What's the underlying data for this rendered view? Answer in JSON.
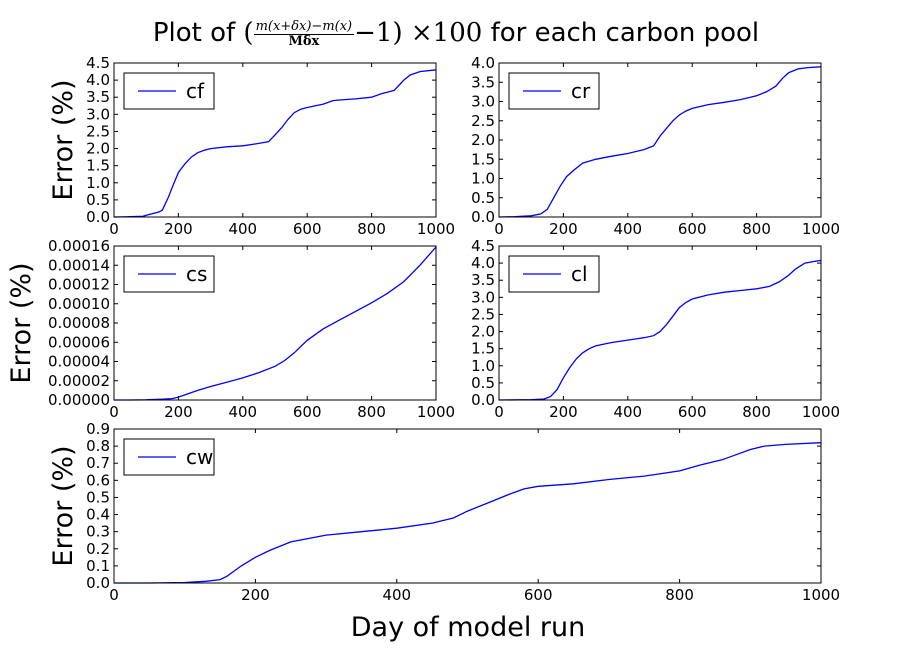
{
  "figure": {
    "title_prefix": "Plot of",
    "title_suffix": "for each carbon pool",
    "formula": {
      "open": "(",
      "numerator": "m(x+δx)−m(x)",
      "denominator": "Mδx",
      "tail": "−1) ×100"
    },
    "xlabel": "Day of model run",
    "line_color": "#0000ff"
  },
  "chart_data": [
    {
      "type": "line",
      "ylabel": "Error (%)",
      "xlim": [
        0,
        1000
      ],
      "ylim": [
        0,
        4.5
      ],
      "xticks": [
        "0",
        "200",
        "400",
        "600",
        "800",
        "1000"
      ],
      "yticks": [
        "0.0",
        "0.5",
        "1.0",
        "1.5",
        "2.0",
        "2.5",
        "3.0",
        "3.5",
        "4.0",
        "4.5"
      ],
      "legend": "top-left",
      "series": [
        {
          "name": "cf",
          "x": [
            0,
            50,
            90,
            100,
            120,
            140,
            150,
            160,
            170,
            180,
            200,
            220,
            240,
            260,
            280,
            300,
            350,
            400,
            450,
            480,
            500,
            520,
            540,
            560,
            580,
            600,
            650,
            680,
            700,
            750,
            800,
            830,
            850,
            870,
            880,
            900,
            920,
            950,
            1000
          ],
          "y": [
            0,
            0.01,
            0.02,
            0.05,
            0.1,
            0.15,
            0.2,
            0.4,
            0.6,
            0.85,
            1.3,
            1.55,
            1.75,
            1.88,
            1.95,
            2.0,
            2.05,
            2.08,
            2.15,
            2.2,
            2.4,
            2.6,
            2.85,
            3.05,
            3.15,
            3.2,
            3.3,
            3.4,
            3.42,
            3.45,
            3.5,
            3.6,
            3.65,
            3.7,
            3.8,
            4.0,
            4.15,
            4.25,
            4.3
          ]
        }
      ]
    },
    {
      "type": "line",
      "ylabel": "",
      "xlim": [
        0,
        1000
      ],
      "ylim": [
        0,
        4.0
      ],
      "xticks": [
        "0",
        "200",
        "400",
        "600",
        "800",
        "1000"
      ],
      "yticks": [
        "0.0",
        "0.5",
        "1.0",
        "1.5",
        "2.0",
        "2.5",
        "3.0",
        "3.5",
        "4.0"
      ],
      "legend": "top-left",
      "series": [
        {
          "name": "cr",
          "x": [
            0,
            50,
            100,
            130,
            150,
            170,
            190,
            210,
            230,
            260,
            300,
            350,
            400,
            450,
            480,
            500,
            520,
            540,
            560,
            580,
            600,
            650,
            700,
            750,
            800,
            830,
            860,
            880,
            900,
            930,
            960,
            1000
          ],
          "y": [
            0,
            0.01,
            0.03,
            0.08,
            0.2,
            0.5,
            0.8,
            1.05,
            1.2,
            1.4,
            1.5,
            1.58,
            1.65,
            1.75,
            1.85,
            2.1,
            2.3,
            2.5,
            2.65,
            2.75,
            2.82,
            2.92,
            2.98,
            3.05,
            3.15,
            3.25,
            3.4,
            3.6,
            3.75,
            3.85,
            3.88,
            3.9
          ]
        }
      ]
    },
    {
      "type": "line",
      "ylabel": "Error (%)",
      "xlim": [
        0,
        1000
      ],
      "ylim": [
        0,
        0.00016
      ],
      "xticks": [
        "0",
        "200",
        "400",
        "600",
        "800",
        "1000"
      ],
      "yticks": [
        "0.00000",
        "0.00002",
        "0.00004",
        "0.00006",
        "0.00008",
        "0.00010",
        "0.00012",
        "0.00014",
        "0.00016"
      ],
      "legend": "top-left",
      "series": [
        {
          "name": "cs",
          "x": [
            0,
            50,
            100,
            150,
            180,
            200,
            230,
            260,
            300,
            350,
            400,
            450,
            500,
            530,
            560,
            600,
            650,
            700,
            750,
            800,
            850,
            900,
            950,
            1000
          ],
          "y": [
            0,
            0,
            2e-07,
            8e-07,
            1.5e-06,
            3e-06,
            6.5e-06,
            1e-05,
            1.4e-05,
            1.85e-05,
            2.3e-05,
            2.85e-05,
            3.5e-05,
            4.1e-05,
            4.9e-05,
            6.2e-05,
            7.4e-05,
            8.3e-05,
            9.2e-05,
            0.000101,
            0.000111,
            0.000123,
            0.00014,
            0.000159
          ]
        }
      ]
    },
    {
      "type": "line",
      "ylabel": "",
      "xlim": [
        0,
        1000
      ],
      "ylim": [
        0,
        4.5
      ],
      "xticks": [
        "0",
        "200",
        "400",
        "600",
        "800",
        "1000"
      ],
      "yticks": [
        "0.0",
        "0.5",
        "1.0",
        "1.5",
        "2.0",
        "2.5",
        "3.0",
        "3.5",
        "4.0",
        "4.5"
      ],
      "legend": "top-left",
      "series": [
        {
          "name": "cl",
          "x": [
            0,
            100,
            140,
            160,
            180,
            200,
            220,
            240,
            260,
            280,
            300,
            350,
            400,
            450,
            480,
            500,
            520,
            540,
            560,
            580,
            600,
            650,
            700,
            750,
            800,
            840,
            870,
            900,
            920,
            950,
            980,
            1000
          ],
          "y": [
            0,
            0.01,
            0.03,
            0.1,
            0.3,
            0.65,
            0.95,
            1.2,
            1.38,
            1.5,
            1.58,
            1.68,
            1.75,
            1.82,
            1.88,
            2.0,
            2.2,
            2.45,
            2.7,
            2.85,
            2.95,
            3.07,
            3.15,
            3.2,
            3.25,
            3.32,
            3.45,
            3.65,
            3.82,
            4.0,
            4.05,
            4.08
          ]
        }
      ]
    },
    {
      "type": "line",
      "ylabel": "Error (%)",
      "xlim": [
        0,
        1000
      ],
      "ylim": [
        0,
        0.9
      ],
      "xticks": [
        "0",
        "200",
        "400",
        "600",
        "800",
        "1000"
      ],
      "yticks": [
        "0.0",
        "0.1",
        "0.2",
        "0.3",
        "0.4",
        "0.5",
        "0.6",
        "0.7",
        "0.8",
        "0.9"
      ],
      "legend": "top-left",
      "series": [
        {
          "name": "cw",
          "x": [
            0,
            50,
            100,
            130,
            150,
            160,
            170,
            180,
            200,
            220,
            250,
            300,
            350,
            400,
            450,
            480,
            500,
            530,
            560,
            580,
            600,
            650,
            700,
            750,
            800,
            830,
            860,
            880,
            900,
            920,
            950,
            1000
          ],
          "y": [
            0,
            0,
            0.003,
            0.01,
            0.02,
            0.04,
            0.07,
            0.1,
            0.15,
            0.19,
            0.24,
            0.28,
            0.3,
            0.32,
            0.35,
            0.38,
            0.42,
            0.47,
            0.52,
            0.55,
            0.565,
            0.58,
            0.605,
            0.625,
            0.655,
            0.69,
            0.72,
            0.75,
            0.78,
            0.8,
            0.81,
            0.82
          ]
        }
      ]
    }
  ]
}
